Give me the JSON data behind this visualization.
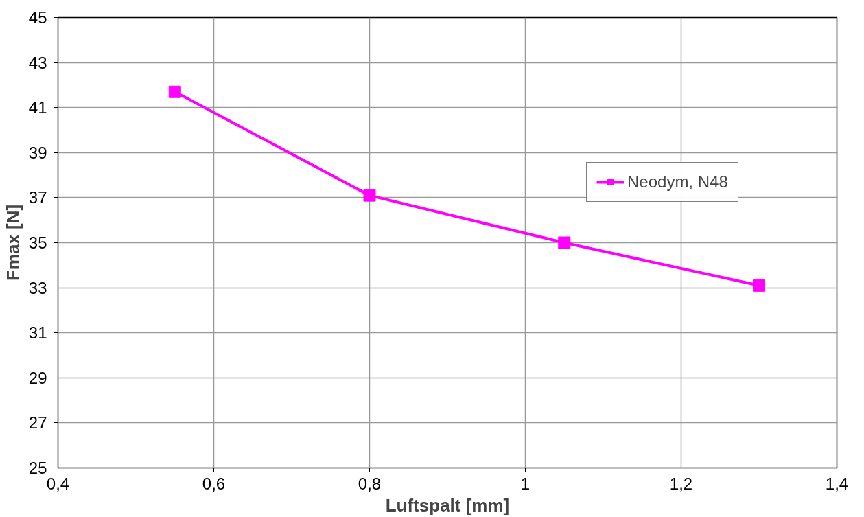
{
  "chart_data": {
    "type": "line",
    "xlabel": "Luftspalt [mm]",
    "ylabel": "Fmax [N]",
    "x": [
      0.55,
      0.8,
      1.05,
      1.3
    ],
    "series": [
      {
        "name": "Neodym, N48",
        "color": "#ff00ff",
        "values": [
          41.7,
          37.1,
          35.0,
          33.1
        ]
      }
    ],
    "xlim": [
      0.4,
      1.4
    ],
    "xticks": [
      {
        "value": 0.4,
        "label": "0,4"
      },
      {
        "value": 0.6,
        "label": "0,6"
      },
      {
        "value": 0.8,
        "label": "0,8"
      },
      {
        "value": 1,
        "label": "1"
      },
      {
        "value": 1.2,
        "label": "1,2"
      },
      {
        "value": 1.4,
        "label": "1,4"
      }
    ],
    "ylim": [
      25,
      45
    ],
    "yticks": [
      25,
      27,
      29,
      31,
      33,
      35,
      37,
      39,
      41,
      43,
      45
    ],
    "grid": true,
    "legend": "top right",
    "marker": "square",
    "line_style": "solid"
  }
}
